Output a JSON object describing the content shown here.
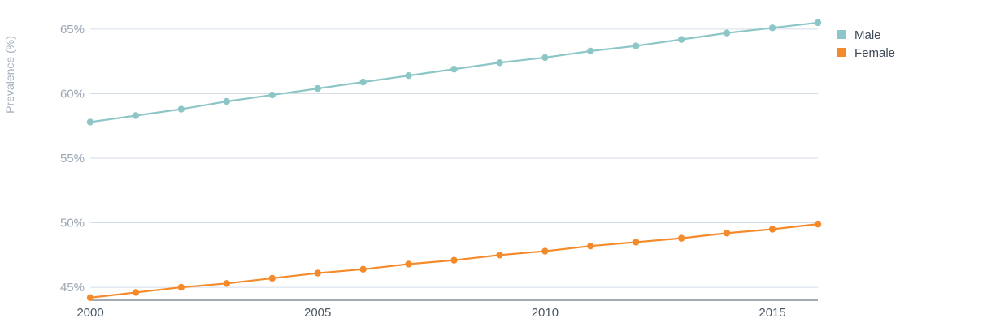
{
  "chart_data": {
    "type": "line",
    "title": "",
    "xlabel": "",
    "ylabel": "Prevalence (%)",
    "x": [
      2000,
      2001,
      2002,
      2003,
      2004,
      2005,
      2006,
      2007,
      2008,
      2009,
      2010,
      2011,
      2012,
      2013,
      2014,
      2015,
      2016
    ],
    "xlim": [
      2000,
      2016
    ],
    "ylim": [
      44,
      66
    ],
    "x_ticks": [
      2000,
      2005,
      2010,
      2015
    ],
    "x_tick_labels": [
      "2000",
      "2005",
      "2010",
      "2015"
    ],
    "y_ticks": [
      45,
      50,
      55,
      60,
      65
    ],
    "y_tick_labels": [
      "45%",
      "50%",
      "55%",
      "60%",
      "65%"
    ],
    "grid": true,
    "legend_position": "top-right",
    "series": [
      {
        "name": "Male",
        "color": "#8cc6c6",
        "values": [
          57.8,
          58.3,
          58.8,
          59.4,
          59.9,
          60.4,
          60.9,
          61.4,
          61.9,
          62.4,
          62.8,
          63.3,
          63.7,
          64.2,
          64.7,
          65.1,
          65.5
        ]
      },
      {
        "name": "Female",
        "color": "#f48a2a",
        "values": [
          44.2,
          44.6,
          45.0,
          45.3,
          45.7,
          46.1,
          46.4,
          46.8,
          47.1,
          47.5,
          47.8,
          48.2,
          48.5,
          48.8,
          49.2,
          49.5,
          49.9
        ]
      }
    ]
  }
}
